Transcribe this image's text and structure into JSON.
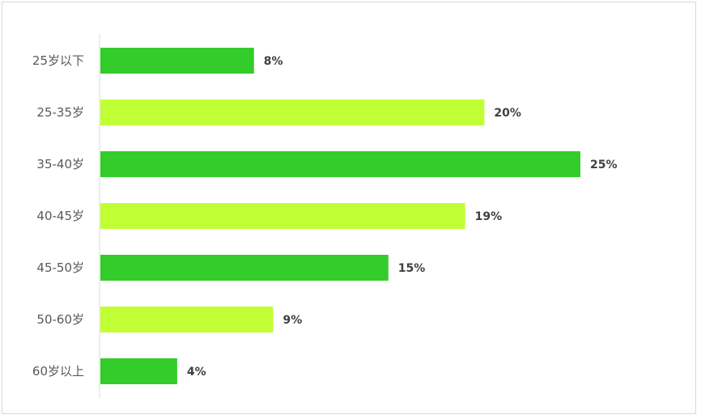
{
  "chart_data": {
    "type": "bar",
    "orientation": "horizontal",
    "categories": [
      "25岁以下",
      "25-35岁",
      "35-40岁",
      "40-45岁",
      "45-50岁",
      "50-60岁",
      "60岁以上"
    ],
    "values": [
      8,
      20,
      25,
      19,
      15,
      9,
      4
    ],
    "value_labels": [
      "8%",
      "20%",
      "25%",
      "19%",
      "15%",
      "9%",
      "4%"
    ],
    "value_unit": "%",
    "title": "",
    "xlabel": "",
    "ylabel": "",
    "xlim": [
      0,
      25
    ],
    "grid": false,
    "legend": "none",
    "colors": [
      "#33cc2b",
      "#c0ff33"
    ]
  }
}
